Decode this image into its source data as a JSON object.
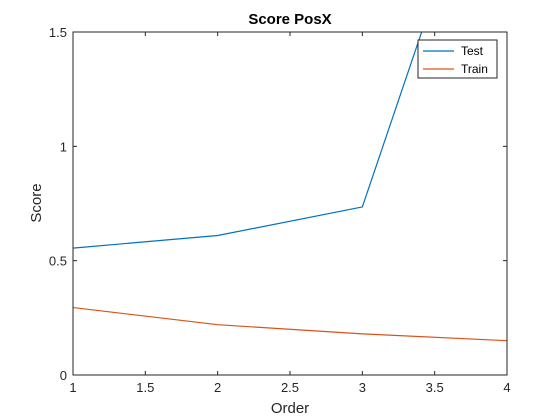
{
  "chart_data": {
    "type": "line",
    "title": "Score PosX",
    "xlabel": "Order",
    "ylabel": "Score",
    "xlim": [
      1,
      4
    ],
    "ylim": [
      0,
      1.5
    ],
    "x_ticks": [
      1,
      1.5,
      2,
      2.5,
      3,
      3.5,
      4
    ],
    "x_tick_labels": [
      "1",
      "1.5",
      "2",
      "2.5",
      "3",
      "3.5",
      "4"
    ],
    "y_ticks": [
      0,
      0.5,
      1,
      1.5
    ],
    "y_tick_labels": [
      "0",
      "0.5",
      "1",
      "1.5"
    ],
    "grid": false,
    "legend_position": "top-right",
    "series": [
      {
        "name": "Test",
        "color": "#0072bd",
        "x": [
          1,
          2,
          3,
          4
        ],
        "y": [
          0.555,
          0.61,
          0.735,
          2.6
        ]
      },
      {
        "name": "Train",
        "color": "#d95319",
        "x": [
          1,
          2,
          3,
          4
        ],
        "y": [
          0.295,
          0.22,
          0.18,
          0.15
        ]
      }
    ]
  }
}
